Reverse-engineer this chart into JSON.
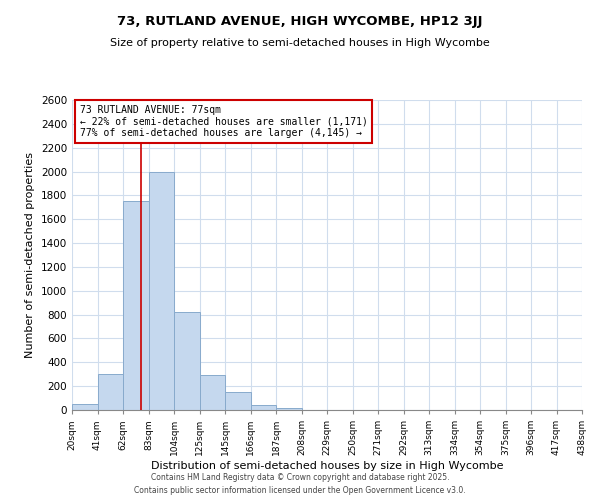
{
  "title": "73, RUTLAND AVENUE, HIGH WYCOMBE, HP12 3JJ",
  "subtitle": "Size of property relative to semi-detached houses in High Wycombe",
  "xlabel": "Distribution of semi-detached houses by size in High Wycombe",
  "ylabel": "Number of semi-detached properties",
  "bar_values": [
    50,
    300,
    1750,
    2000,
    825,
    290,
    155,
    40,
    20,
    0,
    0,
    0,
    0,
    0,
    0,
    0,
    0,
    0,
    0,
    0
  ],
  "bin_labels": [
    "20sqm",
    "41sqm",
    "62sqm",
    "83sqm",
    "104sqm",
    "125sqm",
    "145sqm",
    "166sqm",
    "187sqm",
    "208sqm",
    "229sqm",
    "250sqm",
    "271sqm",
    "292sqm",
    "313sqm",
    "334sqm",
    "354sqm",
    "375sqm",
    "396sqm",
    "417sqm",
    "438sqm"
  ],
  "bar_color": "#C5D8EE",
  "bar_edge_color": "#88AACC",
  "grid_color": "#D0DDED",
  "property_line_x": 77,
  "property_line_color": "#CC0000",
  "annotation_title": "73 RUTLAND AVENUE: 77sqm",
  "annotation_line1": "← 22% of semi-detached houses are smaller (1,171)",
  "annotation_line2": "77% of semi-detached houses are larger (4,145) →",
  "annotation_box_color": "#CC0000",
  "ylim": [
    0,
    2600
  ],
  "xlim_start": 20,
  "xlim_end": 440,
  "bin_width": 21,
  "n_bars": 20,
  "footer1": "Contains HM Land Registry data © Crown copyright and database right 2025.",
  "footer2": "Contains public sector information licensed under the Open Government Licence v3.0.",
  "background_color": "#FFFFFF"
}
